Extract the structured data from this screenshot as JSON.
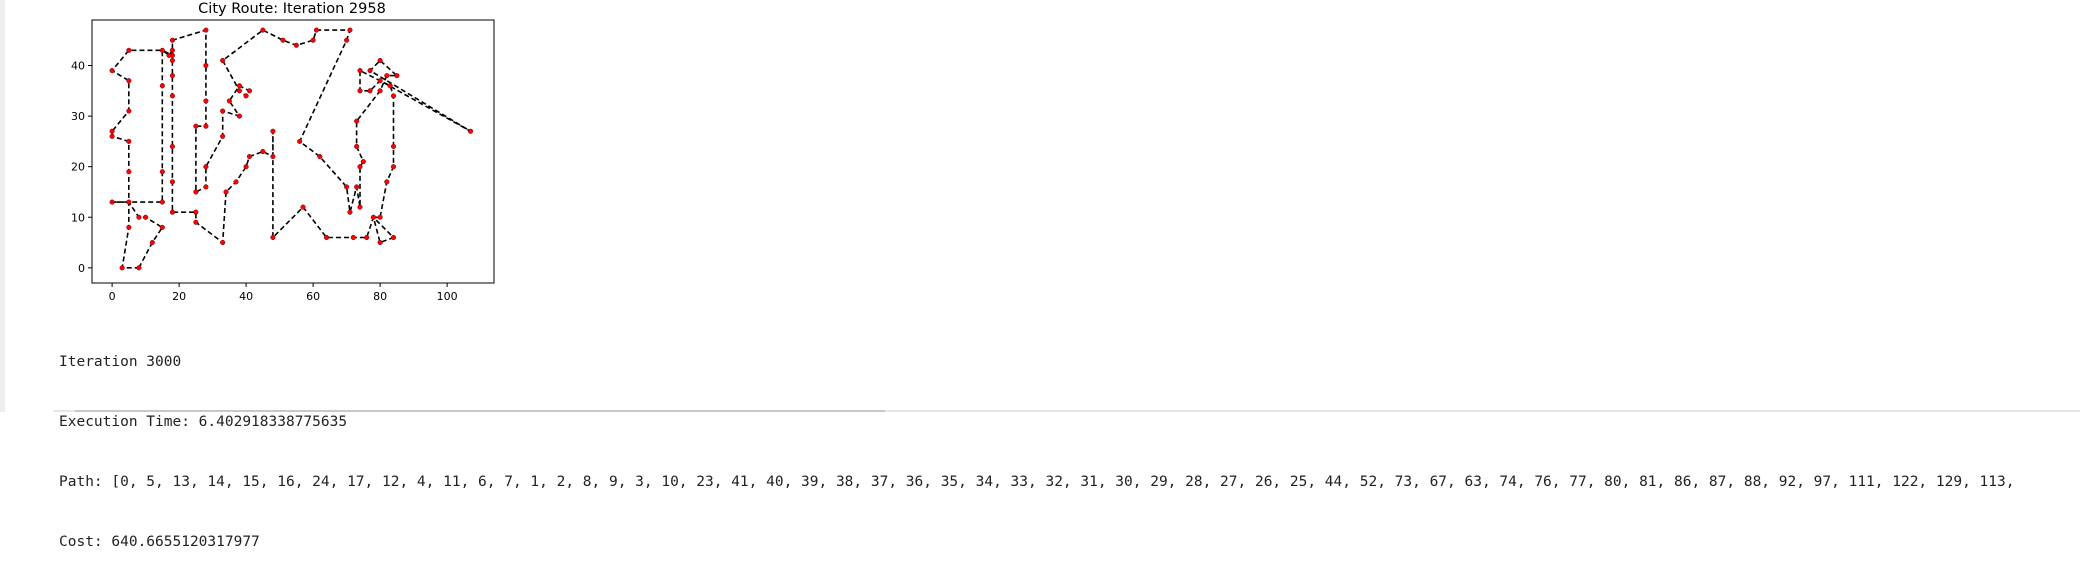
{
  "chart_data": {
    "type": "line",
    "title": "City Route: Iteration 2958",
    "xlabel": "",
    "ylabel": "",
    "xlim": [
      -6,
      114
    ],
    "ylim": [
      -3,
      49
    ],
    "xticks": [
      0,
      20,
      40,
      60,
      80,
      100
    ],
    "yticks": [
      0,
      10,
      20,
      30,
      40
    ],
    "grid": false,
    "line_style": "dashed",
    "line_color": "#000000",
    "marker_color": "#ff0000",
    "route": [
      [
        8,
        0
      ],
      [
        12,
        5
      ],
      [
        15,
        8
      ],
      [
        10,
        10
      ],
      [
        8,
        10
      ],
      [
        5,
        13
      ],
      [
        0,
        13
      ],
      [
        5,
        13
      ],
      [
        15,
        13
      ],
      [
        15,
        19
      ],
      [
        15,
        36
      ],
      [
        15,
        43
      ],
      [
        18,
        42
      ],
      [
        18,
        45
      ],
      [
        28,
        47
      ],
      [
        28,
        40
      ],
      [
        28,
        33
      ],
      [
        28,
        28
      ],
      [
        25,
        28
      ],
      [
        25,
        15
      ],
      [
        28,
        16
      ],
      [
        28,
        20
      ],
      [
        33,
        26
      ],
      [
        33,
        31
      ],
      [
        38,
        30
      ],
      [
        35,
        33
      ],
      [
        38,
        36
      ],
      [
        41,
        35
      ],
      [
        40,
        34
      ],
      [
        38,
        35
      ],
      [
        33,
        41
      ],
      [
        45,
        47
      ],
      [
        51,
        45
      ],
      [
        55,
        44
      ],
      [
        60,
        45
      ],
      [
        61,
        47
      ],
      [
        71,
        47
      ],
      [
        70,
        45
      ],
      [
        56,
        25
      ],
      [
        62,
        22
      ],
      [
        70,
        16
      ],
      [
        71,
        11
      ],
      [
        73,
        16
      ],
      [
        74,
        12
      ],
      [
        74,
        20
      ],
      [
        75,
        21
      ],
      [
        73,
        24
      ],
      [
        73,
        29
      ],
      [
        80,
        35
      ],
      [
        82,
        38
      ],
      [
        85,
        38
      ],
      [
        80,
        41
      ],
      [
        77,
        39
      ],
      [
        107,
        27
      ],
      [
        80,
        37
      ],
      [
        77,
        35
      ],
      [
        74,
        35
      ],
      [
        74,
        39
      ],
      [
        83,
        36
      ],
      [
        84,
        34
      ],
      [
        84,
        24
      ],
      [
        84,
        20
      ],
      [
        82,
        17
      ],
      [
        80,
        10
      ],
      [
        78,
        10
      ],
      [
        80,
        5
      ],
      [
        84,
        6
      ],
      [
        78,
        10
      ],
      [
        76,
        6
      ],
      [
        72,
        6
      ],
      [
        64,
        6
      ],
      [
        57,
        12
      ],
      [
        48,
        6
      ],
      [
        48,
        22
      ],
      [
        48,
        27
      ],
      [
        48,
        22
      ],
      [
        45,
        23
      ],
      [
        41,
        22
      ],
      [
        40,
        20
      ],
      [
        37,
        17
      ],
      [
        34,
        15
      ],
      [
        33,
        5
      ],
      [
        25,
        9
      ],
      [
        25,
        11
      ],
      [
        18,
        11
      ],
      [
        18,
        17
      ],
      [
        18,
        24
      ],
      [
        18,
        34
      ],
      [
        18,
        38
      ],
      [
        18,
        41
      ],
      [
        18,
        43
      ],
      [
        17,
        42
      ],
      [
        15,
        43
      ],
      [
        5,
        43
      ],
      [
        0,
        39
      ],
      [
        5,
        37
      ],
      [
        5,
        31
      ],
      [
        0,
        27
      ],
      [
        0,
        26
      ],
      [
        5,
        25
      ],
      [
        5,
        19
      ],
      [
        5,
        13
      ],
      [
        5,
        8
      ],
      [
        3,
        0
      ],
      [
        8,
        0
      ]
    ]
  },
  "output": {
    "iteration_line": "Iteration 3000",
    "execution_time_line": "Execution Time: 6.402918338775635",
    "path_line": "Path: [0, 5, 13, 14, 15, 16, 24, 17, 12, 4, 11, 6, 7, 1, 2, 8, 9, 3, 10, 23, 41, 40, 39, 38, 37, 36, 35, 34, 33, 32, 31, 30, 29, 28, 27, 26, 25, 44, 52, 73, 67, 63, 74, 76, 77, 80, 81, 86, 87, 88, 92, 97, 111, 122, 129, 113,",
    "cost_line": "Cost: 640.6655120317977"
  }
}
